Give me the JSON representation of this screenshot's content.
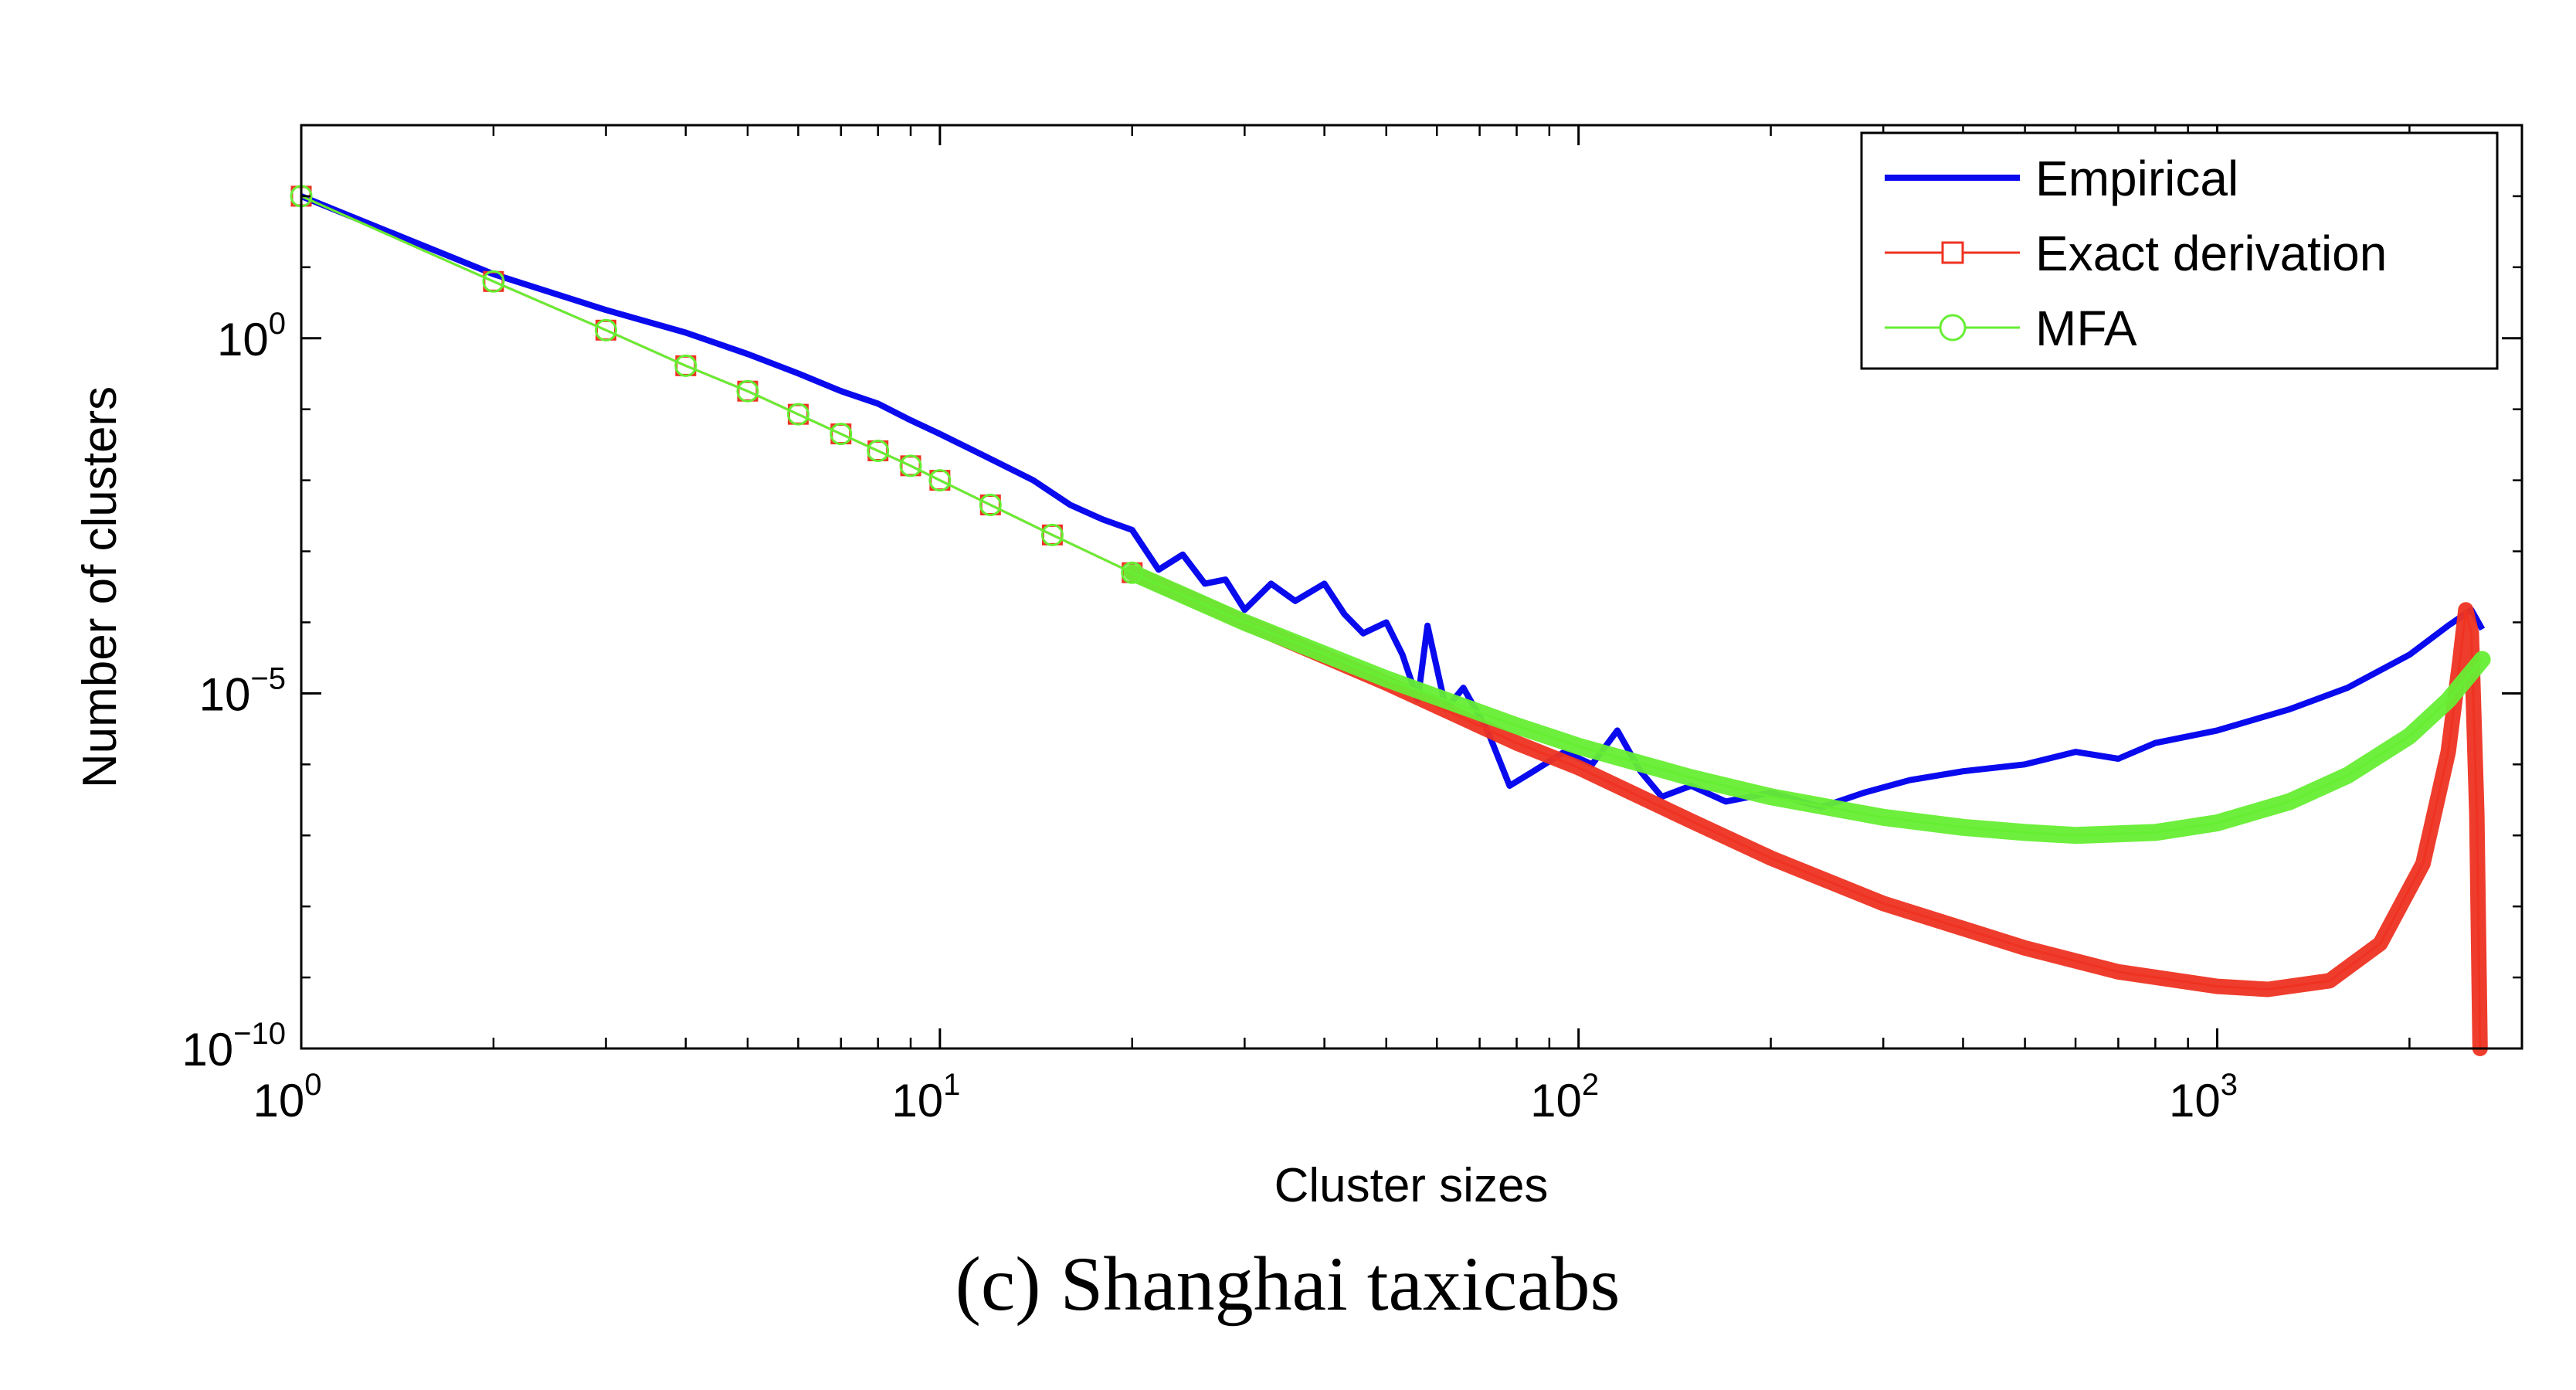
{
  "chart_data": {
    "type": "line",
    "xscale": "log",
    "yscale": "log",
    "xlabel": "Cluster sizes",
    "ylabel": "Number of clusters",
    "caption": "(c) Shanghai taxicabs",
    "xlim": [
      1,
      3000
    ],
    "ylim": [
      1e-10,
      1000.0
    ],
    "grid": false,
    "legend_position": "top-right",
    "x_ticks": [
      {
        "value": 1,
        "base": "10",
        "exp": "0"
      },
      {
        "value": 10,
        "base": "10",
        "exp": "1"
      },
      {
        "value": 100,
        "base": "10",
        "exp": "2"
      },
      {
        "value": 1000,
        "base": "10",
        "exp": "3"
      }
    ],
    "y_ticks": [
      {
        "value": 1,
        "base": "10",
        "exp": "0"
      },
      {
        "value": 1e-05,
        "base": "10",
        "exp": "−5"
      },
      {
        "value": 1e-10,
        "base": "10",
        "exp": "−10"
      }
    ],
    "series": [
      {
        "name": "Empirical",
        "color": "#0a0aee",
        "style": "thick-line",
        "marker": "none",
        "points": [
          [
            1,
            100
          ],
          [
            2,
            8
          ],
          [
            3,
            2.5
          ],
          [
            4,
            1.2
          ],
          [
            5,
            0.6
          ],
          [
            6,
            0.32
          ],
          [
            7,
            0.18
          ],
          [
            8,
            0.12
          ],
          [
            9,
            0.07
          ],
          [
            10,
            0.045
          ],
          [
            12,
            0.02
          ],
          [
            14,
            0.01
          ],
          [
            16,
            0.0045
          ],
          [
            18,
            0.0028
          ],
          [
            20,
            0.002
          ],
          [
            22,
            0.00055
          ],
          [
            24,
            0.0009
          ],
          [
            26,
            0.00035
          ],
          [
            28,
            0.0004
          ],
          [
            30,
            0.00015
          ],
          [
            33,
            0.00035
          ],
          [
            36,
            0.0002
          ],
          [
            40,
            0.00035
          ],
          [
            43,
            0.00013
          ],
          [
            46,
            7e-05
          ],
          [
            50,
            0.0001
          ],
          [
            53,
            3.5e-05
          ],
          [
            56,
            8e-06
          ],
          [
            58,
            9e-05
          ],
          [
            62,
            6e-06
          ],
          [
            66,
            1.2e-05
          ],
          [
            72,
            3e-06
          ],
          [
            78,
            5e-07
          ],
          [
            85,
            8e-07
          ],
          [
            95,
            1.5e-06
          ],
          [
            105,
            1e-06
          ],
          [
            115,
            3e-06
          ],
          [
            125,
            8e-07
          ],
          [
            135,
            3.5e-07
          ],
          [
            150,
            5e-07
          ],
          [
            170,
            3e-07
          ],
          [
            200,
            4e-07
          ],
          [
            240,
            2.5e-07
          ],
          [
            280,
            4e-07
          ],
          [
            330,
            6e-07
          ],
          [
            400,
            8e-07
          ],
          [
            500,
            1e-06
          ],
          [
            600,
            1.5e-06
          ],
          [
            700,
            1.2e-06
          ],
          [
            800,
            2e-06
          ],
          [
            1000,
            3e-06
          ],
          [
            1300,
            6e-06
          ],
          [
            1600,
            1.2e-05
          ],
          [
            2000,
            3.5e-05
          ],
          [
            2300,
            9e-05
          ],
          [
            2500,
            0.00015
          ],
          [
            2600,
            8e-05
          ]
        ]
      },
      {
        "name": "Exact derivation",
        "color": "#ee3322",
        "style": "line-with-markers",
        "marker": "square",
        "points": [
          [
            1,
            100
          ],
          [
            2,
            6.3
          ],
          [
            3,
            1.3
          ],
          [
            4,
            0.41
          ],
          [
            5,
            0.18
          ],
          [
            6,
            0.085
          ],
          [
            7,
            0.045
          ],
          [
            8,
            0.026
          ],
          [
            9,
            0.016
          ],
          [
            10,
            0.01
          ],
          [
            12,
            0.0045
          ],
          [
            15,
            0.0017
          ],
          [
            20,
            0.0005
          ],
          [
            30,
            0.0001
          ],
          [
            50,
            1.4e-05
          ],
          [
            80,
            2e-06
          ],
          [
            100,
            9e-07
          ],
          [
            150,
            1.6e-07
          ],
          [
            200,
            4.8e-08
          ],
          [
            300,
            1.1e-08
          ],
          [
            500,
            2.6e-09
          ],
          [
            700,
            1.2e-09
          ],
          [
            1000,
            7.5e-10
          ],
          [
            1200,
            6.8e-10
          ],
          [
            1500,
            9e-10
          ],
          [
            1800,
            3e-09
          ],
          [
            2100,
            4e-08
          ],
          [
            2300,
            1.5e-06
          ],
          [
            2400,
            3e-05
          ],
          [
            2450,
            0.00015
          ],
          [
            2500,
            7e-05
          ],
          [
            2550,
            2e-07
          ],
          [
            2580,
            1e-10
          ]
        ]
      },
      {
        "name": "MFA",
        "color": "#66ee33",
        "style": "line-with-markers",
        "marker": "circle",
        "points": [
          [
            1,
            100
          ],
          [
            2,
            6.3
          ],
          [
            3,
            1.3
          ],
          [
            4,
            0.41
          ],
          [
            5,
            0.18
          ],
          [
            6,
            0.085
          ],
          [
            7,
            0.045
          ],
          [
            8,
            0.026
          ],
          [
            9,
            0.016
          ],
          [
            10,
            0.01
          ],
          [
            12,
            0.0045
          ],
          [
            15,
            0.0017
          ],
          [
            20,
            0.0005
          ],
          [
            30,
            0.0001
          ],
          [
            50,
            1.6e-05
          ],
          [
            80,
            3.5e-06
          ],
          [
            100,
            1.8e-06
          ],
          [
            150,
            6.5e-07
          ],
          [
            200,
            3.5e-07
          ],
          [
            300,
            1.8e-07
          ],
          [
            400,
            1.3e-07
          ],
          [
            500,
            1.1e-07
          ],
          [
            600,
            1e-07
          ],
          [
            800,
            1.1e-07
          ],
          [
            1000,
            1.5e-07
          ],
          [
            1300,
            3e-07
          ],
          [
            1600,
            7e-07
          ],
          [
            2000,
            2.5e-06
          ],
          [
            2300,
            8e-06
          ],
          [
            2600,
            3e-05
          ]
        ]
      }
    ]
  }
}
